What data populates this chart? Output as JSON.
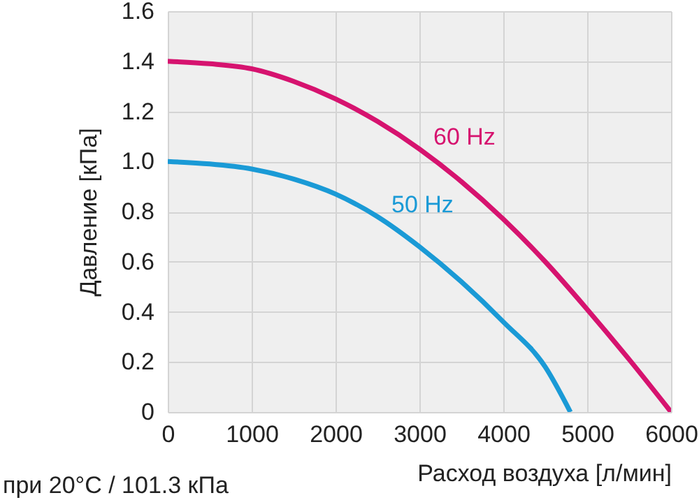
{
  "chart_data": {
    "type": "line",
    "xlabel": "Расход воздуха [л/мин]",
    "ylabel": "Давление [кПа]",
    "annotations": [
      "при 20°C / 101.3 кПа"
    ],
    "xlim": [
      0,
      6000
    ],
    "xticks": [
      0,
      1000,
      2000,
      3000,
      4000,
      5000,
      6000
    ],
    "ylim": [
      0,
      1.6
    ],
    "yticks": [
      0,
      {
        "value": 0.2,
        "label": "0.2"
      },
      {
        "value": 0.4,
        "label": "0.4"
      },
      {
        "value": 0.6,
        "label": "0.6"
      },
      {
        "value": 0.8,
        "label": "0.8"
      },
      {
        "value": 1,
        "label": "1.0"
      },
      {
        "value": 1.2,
        "label": "1.2"
      },
      {
        "value": 1.4,
        "label": "1.4"
      },
      {
        "value": 1.6,
        "label": "1.6"
      }
    ],
    "grid": true,
    "series": [
      {
        "name": "60 Hz",
        "color": "#d6136f",
        "x": [
          0,
          500,
          1000,
          1500,
          2000,
          2500,
          3000,
          3500,
          4000,
          4500,
          5000,
          5500,
          6000
        ],
        "values": [
          1.4,
          1.39,
          1.37,
          1.32,
          1.25,
          1.16,
          1.05,
          0.92,
          0.77,
          0.6,
          0.41,
          0.21,
          0
        ]
      },
      {
        "name": "50 Hz",
        "color": "#1a9ad6",
        "x": [
          0,
          500,
          1000,
          1500,
          2000,
          2500,
          3000,
          3500,
          4000,
          4500,
          4800
        ],
        "values": [
          1.0,
          0.99,
          0.97,
          0.93,
          0.87,
          0.78,
          0.66,
          0.52,
          0.36,
          0.18,
          0
        ]
      }
    ]
  }
}
